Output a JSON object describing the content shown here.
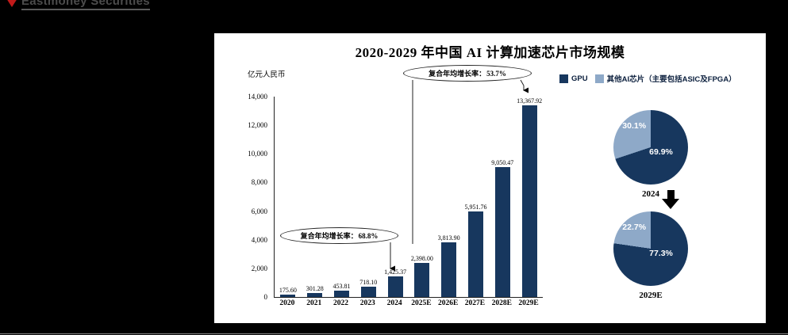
{
  "logo": {
    "text": "Eastmoney Securities"
  },
  "chart_data": {
    "type": "bar",
    "title": "2020-2029 年中国 AI 计算加速芯片市场规模",
    "unit_label": "亿元人民币",
    "categories": [
      "2020",
      "2021",
      "2022",
      "2023",
      "2024",
      "2025E",
      "2026E",
      "2027E",
      "2028E",
      "2029E"
    ],
    "values": [
      175.6,
      301.28,
      453.81,
      718.1,
      1425.37,
      2398.0,
      3813.9,
      5951.76,
      9050.47,
      13367.92
    ],
    "value_labels": [
      "175.60",
      "301.28",
      "453.81",
      "718.10",
      "1,425.37",
      "2,398.00",
      "3,813.90",
      "5,951.76",
      "9,050.47",
      "13,367.92"
    ],
    "ylim": [
      0,
      14000
    ],
    "yticks": [
      "14,000",
      "12,000",
      "10,000",
      "8,000",
      "6,000",
      "4,000",
      "2,000",
      "0"
    ],
    "grid": false,
    "bar_color": "#17375E",
    "light_color": "#8EA9C8",
    "legend_position": "top-right",
    "legend": [
      {
        "label": "GPU",
        "color": "#17375E"
      },
      {
        "label": "其他AI芯片（主要包括ASIC及FPGA）",
        "color": "#8EA9C8"
      }
    ],
    "annotations": [
      {
        "prefix": "复合年均增长率：",
        "value": "68.8%"
      },
      {
        "prefix": "复合年均增长率：",
        "value": "53.7%"
      }
    ],
    "pies": [
      {
        "label": "2024",
        "dark_pct": "69.9%",
        "light_pct": "30.1%",
        "dark_value": 69.9,
        "light_value": 30.1
      },
      {
        "label": "2029E",
        "dark_pct": "77.3%",
        "light_pct": "22.7%",
        "dark_value": 77.3,
        "light_value": 22.7
      }
    ]
  }
}
